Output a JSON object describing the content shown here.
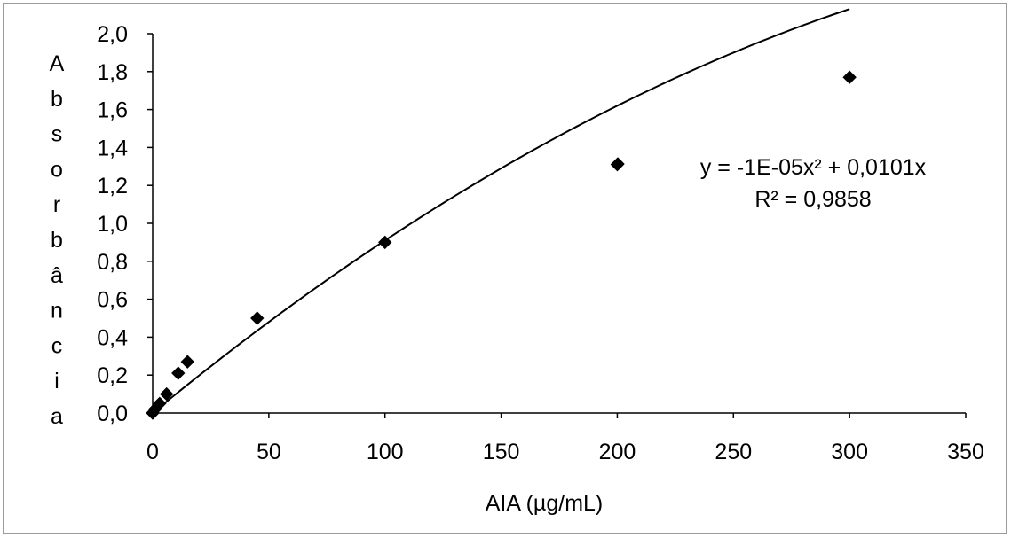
{
  "chart_data": {
    "type": "scatter",
    "xlabel": "AIA (µg/mL)",
    "ylabel": "Absorbância",
    "xlim": [
      0,
      350
    ],
    "ylim": [
      0.0,
      2.0
    ],
    "x_ticks": [
      "0",
      "50",
      "100",
      "150",
      "200",
      "250",
      "300",
      "350"
    ],
    "y_ticks": [
      "0,0",
      "0,2",
      "0,4",
      "0,6",
      "0,8",
      "1,0",
      "1,2",
      "1,4",
      "1,6",
      "1,8",
      "2,0"
    ],
    "grid": false,
    "marker": "diamond",
    "marker_color": "#000000",
    "series": [
      {
        "x": [
          0,
          1,
          3,
          6,
          11,
          15,
          45,
          100,
          200,
          300
        ],
        "y": [
          0.0,
          0.02,
          0.05,
          0.1,
          0.21,
          0.27,
          0.5,
          0.9,
          1.31,
          1.77
        ]
      }
    ],
    "trendline": {
      "type": "polynomial",
      "a": -1e-05,
      "b": 0.0101,
      "x_range": [
        0,
        300
      ]
    },
    "annotations": {
      "equation": "y = -1E-05x² + 0,0101x",
      "r_squared": "R² = 0,9858"
    }
  }
}
